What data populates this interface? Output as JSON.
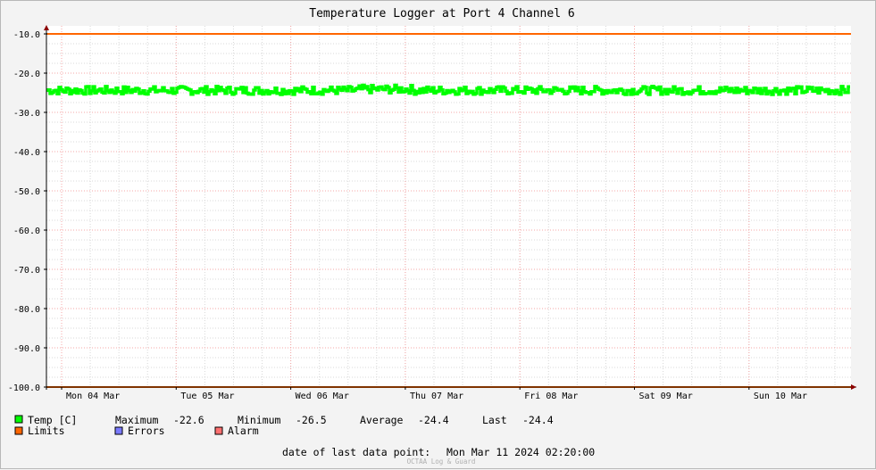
{
  "chart_data": {
    "type": "line",
    "title": "Temperature Logger at Port 4 Channel 6",
    "ylim": [
      -100,
      -10
    ],
    "yticks": [
      -10,
      -20,
      -30,
      -40,
      -50,
      -60,
      -70,
      -80,
      -90,
      -100
    ],
    "ytick_labels": [
      "-10.0",
      "-20.0",
      "-30.0",
      "-40.0",
      "-50.0",
      "-60.0",
      "-70.0",
      "-80.0",
      "-90.0",
      "-100.0"
    ],
    "x_day_labels": [
      "Mon 04 Mar",
      "Tue 05 Mar",
      "Wed 06 Mar",
      "Thu 07 Mar",
      "Fri 08 Mar",
      "Sat 09 Mar",
      "Sun 10 Mar"
    ],
    "x_range": [
      "2024-03-03 21:00",
      "2024-03-11 02:20"
    ],
    "grid": true,
    "series": [
      {
        "name": "Temp [C]",
        "color": "#00ff00",
        "style": "noisy band",
        "typical": -24.4,
        "band": [
          -25.4,
          -23.4
        ],
        "maximum": -22.6,
        "minimum": -26.5,
        "average": -24.4,
        "last": -24.4
      },
      {
        "name": "Limits",
        "color": "#ff6600",
        "upper": -10.0,
        "lower": -100.0
      }
    ],
    "colors": {
      "temp": "#00ff00",
      "limits": "#ff6600",
      "errors": "#7a7aff",
      "alarm": "#ff7070",
      "grid_major": "#f4a7a7",
      "grid_minor": "#d8d8d8",
      "axis_arrow": "#8b0000"
    }
  },
  "legend": {
    "temp_label": "Temp [C]",
    "maximum_label": "Maximum",
    "maximum_value": "-22.6",
    "minimum_label": "Minimum",
    "minimum_value": "-26.5",
    "average_label": "Average",
    "average_value": "-24.4",
    "last_label": "Last",
    "last_value": "-24.4",
    "limits_label": "Limits",
    "errors_label": "Errors",
    "alarm_label": "Alarm"
  },
  "footer": {
    "last_point_label": "date of last data point:",
    "last_point_value": "Mon Mar 11 2024 02:20:00",
    "credit": "OCTAA Log & Guard"
  }
}
